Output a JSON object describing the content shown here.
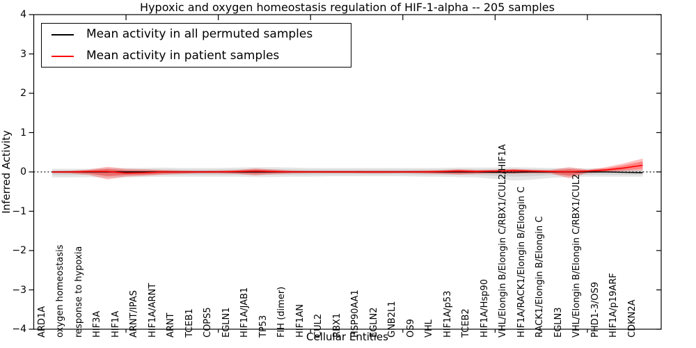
{
  "figure": {
    "title": "Hypoxic and oxygen homeostasis regulation of HIF-1-alpha -- 205 samples"
  },
  "legend": {
    "entries": [
      {
        "label": "Mean activity in all permuted samples",
        "color": "#000000"
      },
      {
        "label": "Mean activity in patient samples",
        "color": "#ff0000"
      }
    ]
  },
  "chart_data": {
    "type": "line",
    "title": "Hypoxic and oxygen homeostasis regulation of HIF-1-alpha -- 205 samples",
    "xlabel": "Cellular Entities",
    "ylabel": "Inferred Activity",
    "ylim": [
      -4,
      4
    ],
    "yticklabels": [
      "4",
      "3",
      "2",
      "1",
      "0",
      "−1",
      "−2",
      "−3",
      "−4"
    ],
    "ytick_values": [
      4,
      3,
      2,
      1,
      0,
      -1,
      -2,
      -3,
      -4
    ],
    "xtick_positions": [
      5,
      10,
      15,
      20,
      25,
      30
    ],
    "grid": false,
    "legend_position": "upper left",
    "zero_line": {
      "y": 0,
      "style": "dotted",
      "color": "#000000"
    },
    "categories": [
      "ARD1A",
      "oxygen homeostasis",
      "response to hypoxia",
      "HIF3A",
      "HIF1A",
      "ARNT/IPAS",
      "HIF1A/ARNT",
      "ARNT",
      "TCEB1",
      "COPS5",
      "EGLN1",
      "HIF1A/JAB1",
      "TP53",
      "FIH (dimer)",
      "HIF1AN",
      "CUL2",
      "RBX1",
      "HSP90AA1",
      "EGLN2",
      "GNB2L1",
      "OS9",
      "VHL",
      "HIF1A/p53",
      "TCEB2",
      "HIF1A/Hsp90",
      "VHL/Elongin B/Elongin C/RBX1/CUL2/HIF1A",
      "HIF1A/RACK1/Elongin B/Elongin C",
      "RACK1/Elongin B/Elongin C",
      "EGLN3",
      "VHL/Elongin B/Elongin C/RBX1/CUL2",
      "PHD1-3/OS9",
      "HIF1A/p19ARF",
      "CDKN2A"
    ],
    "series": [
      {
        "name": "Mean activity in all permuted samples",
        "color": "#000000",
        "band_color": "#888888",
        "values": [
          0,
          0,
          0,
          0,
          0,
          0,
          0,
          0,
          0,
          0,
          0,
          0,
          0,
          0,
          0,
          0,
          0,
          0,
          0,
          0,
          0,
          0,
          0,
          0,
          -0.01,
          -0.01,
          0,
          0,
          0,
          0,
          0,
          -0.01,
          -0.02
        ],
        "band_outer_upper": [
          0.08,
          0.08,
          0.08,
          0.1,
          0.1,
          0.1,
          0.11,
          0.1,
          0.1,
          0.1,
          0.11,
          0.12,
          0.12,
          0.11,
          0.1,
          0.1,
          0.1,
          0.1,
          0.1,
          0.1,
          0.1,
          0.1,
          0.11,
          0.11,
          0.11,
          0.12,
          0.11,
          0.1,
          0.1,
          0.09,
          0.08,
          0.07,
          0.06
        ],
        "band_outer_lower": [
          -0.14,
          -0.14,
          -0.13,
          -0.15,
          -0.14,
          -0.13,
          -0.12,
          -0.12,
          -0.12,
          -0.12,
          -0.12,
          -0.13,
          -0.13,
          -0.12,
          -0.12,
          -0.11,
          -0.11,
          -0.11,
          -0.11,
          -0.11,
          -0.12,
          -0.12,
          -0.13,
          -0.14,
          -0.18,
          -0.22,
          -0.2,
          -0.15,
          -0.13,
          -0.12,
          -0.12,
          -0.12,
          -0.12
        ],
        "band_inner_upper": [
          0.04,
          0.04,
          0.04,
          0.06,
          0.06,
          0.06,
          0.06,
          0.06,
          0.06,
          0.06,
          0.06,
          0.07,
          0.07,
          0.06,
          0.06,
          0.06,
          0.06,
          0.06,
          0.06,
          0.06,
          0.06,
          0.06,
          0.06,
          0.06,
          0.06,
          0.07,
          0.06,
          0.06,
          0.06,
          0.05,
          0.04,
          0.04,
          0.03
        ],
        "band_inner_lower": [
          -0.08,
          -0.08,
          -0.07,
          -0.08,
          -0.08,
          -0.07,
          -0.07,
          -0.07,
          -0.07,
          -0.07,
          -0.07,
          -0.07,
          -0.07,
          -0.07,
          -0.07,
          -0.06,
          -0.06,
          -0.06,
          -0.06,
          -0.06,
          -0.07,
          -0.07,
          -0.07,
          -0.08,
          -0.1,
          -0.12,
          -0.11,
          -0.08,
          -0.07,
          -0.07,
          -0.07,
          -0.07,
          -0.07
        ]
      },
      {
        "name": "Mean activity in patient samples",
        "color": "#ff0000",
        "band_color": "#ff0000",
        "values": [
          0,
          0,
          0.01,
          0.01,
          -0.03,
          -0.02,
          0,
          0,
          0,
          0,
          0.01,
          0.02,
          0.01,
          0,
          0,
          0,
          0,
          0,
          0,
          0,
          0,
          0.01,
          0.02,
          0.01,
          0.02,
          0.03,
          0.02,
          0.01,
          0,
          0.02,
          0.05,
          0.1,
          0.17
        ],
        "band_outer_upper": [
          0.02,
          0.03,
          0.06,
          0.13,
          0.08,
          0.07,
          0.05,
          0.04,
          0.03,
          0.04,
          0.05,
          0.09,
          0.06,
          0.04,
          0.03,
          0.03,
          0.03,
          0.03,
          0.03,
          0.03,
          0.04,
          0.04,
          0.07,
          0.05,
          0.06,
          0.08,
          0.06,
          0.05,
          0.12,
          0.06,
          0.12,
          0.22,
          0.34
        ],
        "band_outer_lower": [
          -0.03,
          -0.04,
          -0.08,
          -0.19,
          -0.12,
          -0.1,
          -0.07,
          -0.05,
          -0.04,
          -0.04,
          -0.05,
          -0.09,
          -0.06,
          -0.04,
          -0.03,
          -0.03,
          -0.03,
          -0.04,
          -0.04,
          -0.03,
          -0.04,
          -0.05,
          -0.07,
          -0.05,
          -0.04,
          -0.05,
          -0.04,
          -0.04,
          -0.16,
          -0.03,
          -0.01,
          0.02,
          0.04
        ],
        "band_inner_upper": [
          0.01,
          0.02,
          0.04,
          0.08,
          0.04,
          0.03,
          0.03,
          0.02,
          0.02,
          0.02,
          0.03,
          0.06,
          0.04,
          0.02,
          0.02,
          0.02,
          0.02,
          0.02,
          0.02,
          0.02,
          0.02,
          0.03,
          0.05,
          0.03,
          0.04,
          0.06,
          0.04,
          0.03,
          0.07,
          0.04,
          0.09,
          0.17,
          0.27
        ],
        "band_inner_lower": [
          -0.02,
          -0.02,
          -0.04,
          -0.11,
          -0.08,
          -0.07,
          -0.04,
          -0.03,
          -0.02,
          -0.02,
          -0.03,
          -0.05,
          -0.03,
          -0.02,
          -0.02,
          -0.02,
          -0.02,
          -0.02,
          -0.02,
          -0.02,
          -0.02,
          -0.03,
          -0.04,
          -0.03,
          -0.02,
          -0.02,
          -0.02,
          -0.02,
          -0.1,
          -0.01,
          0.02,
          0.05,
          0.08
        ]
      }
    ]
  }
}
